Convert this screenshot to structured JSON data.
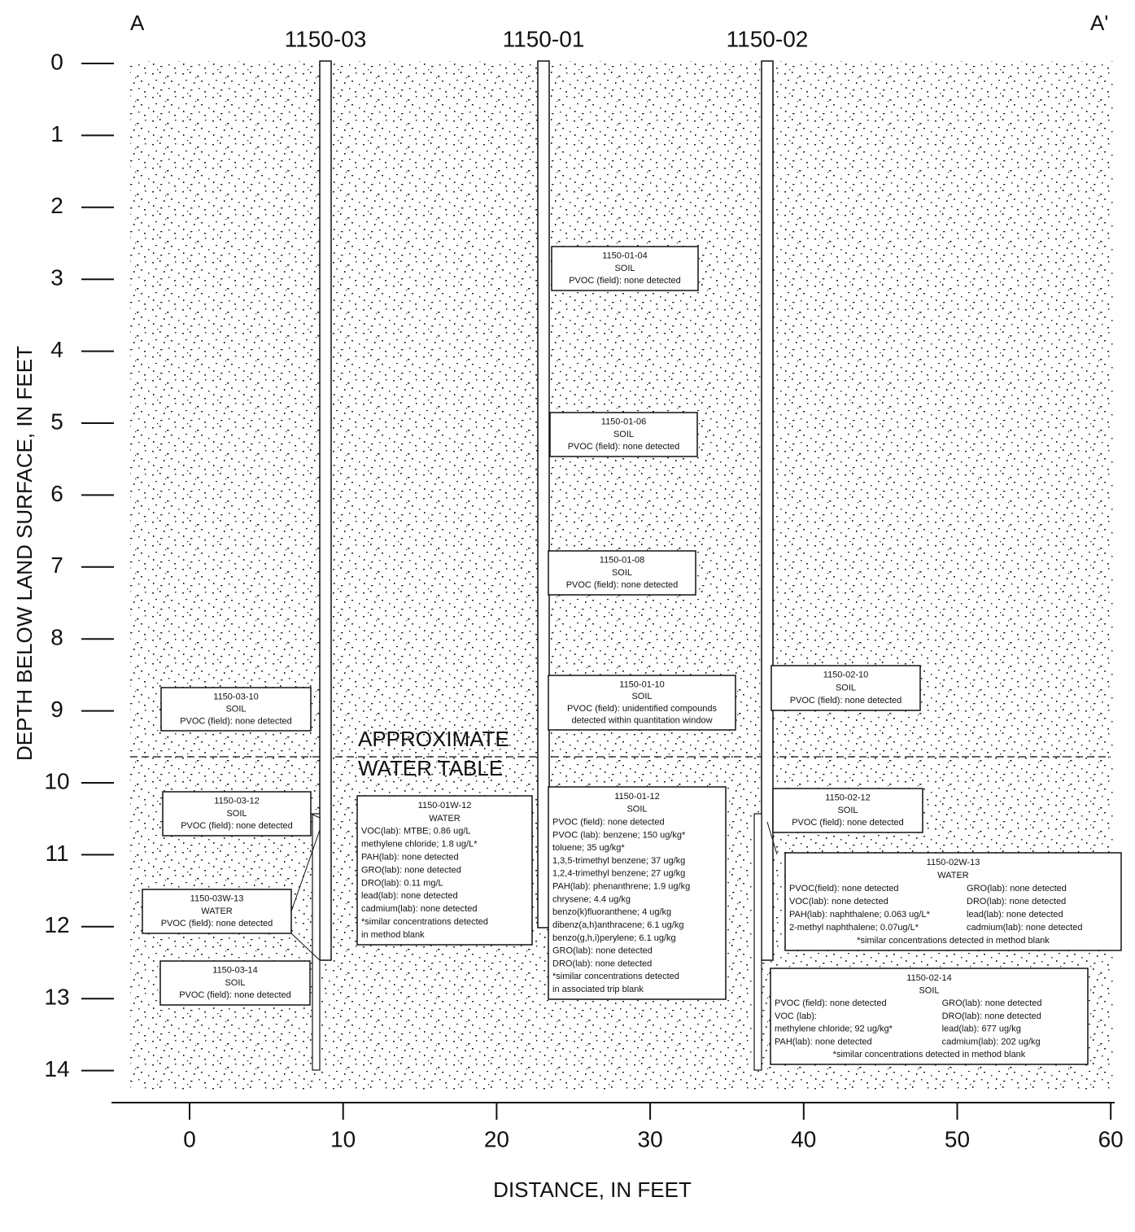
{
  "section": {
    "start": "A",
    "end": "A'"
  },
  "wells": [
    "1150-03",
    "1150-01",
    "1150-02"
  ],
  "y_axis": {
    "label": "DEPTH BELOW LAND SURFACE, IN FEET",
    "ticks": [
      0,
      1,
      2,
      3,
      4,
      5,
      6,
      7,
      8,
      9,
      10,
      11,
      12,
      13,
      14
    ]
  },
  "x_axis": {
    "label": "DISTANCE, IN FEET",
    "ticks": [
      0,
      10,
      20,
      30,
      40,
      50,
      60
    ]
  },
  "water_table": [
    "APPROXIMATE",
    "WATER TABLE"
  ],
  "samples": [
    {
      "id": "1150-03-10",
      "medium": "SOIL",
      "lines": [
        "PVOC (field): none detected"
      ]
    },
    {
      "id": "1150-03-12",
      "medium": "SOIL",
      "lines": [
        "PVOC (field): none detected"
      ]
    },
    {
      "id": "1150-03W-13",
      "medium": "WATER",
      "lines": [
        "PVOC (field): none detected"
      ]
    },
    {
      "id": "1150-03-14",
      "medium": "SOIL",
      "lines": [
        "PVOC (field): none detected"
      ]
    },
    {
      "id": "1150-01-04",
      "medium": "SOIL",
      "lines": [
        "PVOC (field): none detected"
      ]
    },
    {
      "id": "1150-01-06",
      "medium": "SOIL",
      "lines": [
        "PVOC (field): none detected"
      ]
    },
    {
      "id": "1150-01-08",
      "medium": "SOIL",
      "lines": [
        "PVOC (field): none detected"
      ]
    },
    {
      "id": "1150-01-10",
      "medium": "SOIL",
      "lines": [
        "PVOC (field): unidentified compounds",
        "detected within quantitation window"
      ]
    },
    {
      "id": "1150-01W-12",
      "medium": "WATER",
      "lines": [
        "VOC(lab): MTBE; 0.86 ug/L",
        "methylene chloride; 1.8 ug/L*",
        "PAH(lab): none detected",
        "GRO(lab): none detected",
        "DRO(lab): 0.11 mg/L",
        "lead(lab): none detected",
        "cadmium(lab): none detected",
        "*similar concentrations detected",
        "in method blank"
      ]
    },
    {
      "id": "1150-01-12",
      "medium": "SOIL",
      "lines": [
        "PVOC (field): none detected",
        "PVOC (lab): benzene; 150 ug/kg*",
        "toluene; 35 ug/kg*",
        "1,3,5-trimethyl benzene; 37 ug/kg",
        "1,2,4-trimethyl benzene; 27 ug/kg",
        "PAH(lab): phenanthrene; 1.9 ug/kg",
        "chrysene; 4.4 ug/kg",
        "benzo(k)fluoranthene; 4 ug/kg",
        "dibenz(a,h)anthracene; 6.1 ug/kg",
        "benzo(g,h,i)perylene; 6.1 ug/kg",
        "GRO(lab): none detected",
        "DRO(lab): none detected",
        "*similar concentrations detected",
        "in associated trip blank"
      ]
    },
    {
      "id": "1150-02-10",
      "medium": "SOIL",
      "lines": [
        "PVOC (field): none detected"
      ]
    },
    {
      "id": "1150-02-12",
      "medium": "SOIL",
      "lines": [
        "PVOC (field): none detected"
      ]
    },
    {
      "id": "1150-02W-13",
      "medium": "WATER",
      "left": [
        "PVOC(field): none detected",
        "VOC(lab): none detected",
        "PAH(lab): naphthalene; 0.063 ug/L*",
        "2-methyl naphthalene; 0.07ug/L*"
      ],
      "right": [
        "GRO(lab): none detected",
        "DRO(lab): none detected",
        "lead(lab): none detected",
        "cadmium(lab): none detected"
      ],
      "note": "*similar concentrations detected in method blank"
    },
    {
      "id": "1150-02-14",
      "medium": "SOIL",
      "left": [
        "PVOC (field): none detected",
        "VOC (lab):",
        "methylene chloride; 92 ug/kg*",
        "PAH(lab): none detected"
      ],
      "right": [
        "GRO(lab): none detected",
        "DRO(lab): none detected",
        "lead(lab): 677 ug/kg",
        "cadmium(lab): 202 ug/kg"
      ],
      "note": "*similar concentrations detected in method blank"
    }
  ]
}
